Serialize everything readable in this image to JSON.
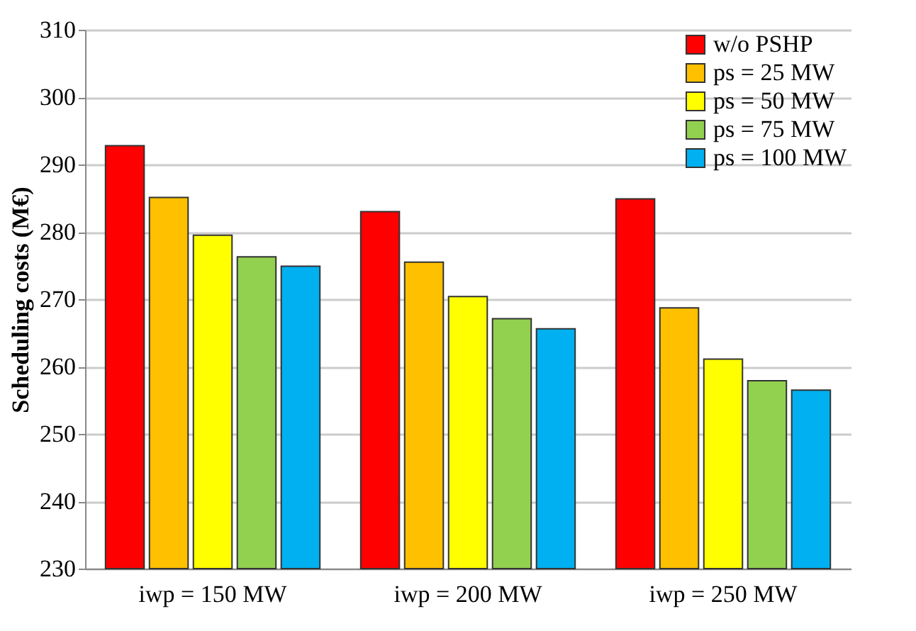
{
  "chart_data": {
    "type": "bar",
    "ylabel": "Scheduling costs (M€)",
    "categories": [
      "iwp = 150 MW",
      "iwp = 200 MW",
      "iwp = 250 MW"
    ],
    "series": [
      {
        "name": "w/o PSHP",
        "color": "#ff0000",
        "values": [
          292.8,
          283.0,
          284.9
        ]
      },
      {
        "name": "ps = 25 MW",
        "color": "#ffc000",
        "values": [
          285.1,
          275.5,
          268.7
        ]
      },
      {
        "name": "ps = 50 MW",
        "color": "#ffff00",
        "values": [
          279.5,
          270.4,
          261.1
        ]
      },
      {
        "name": "ps = 75 MW",
        "color": "#92d050",
        "values": [
          276.3,
          267.1,
          257.9
        ]
      },
      {
        "name": "ps = 100 MW",
        "color": "#00b0f0",
        "values": [
          274.9,
          265.6,
          256.5
        ]
      }
    ],
    "ylim": [
      230,
      310
    ],
    "yticks": [
      230,
      240,
      250,
      260,
      270,
      280,
      290,
      300,
      310
    ],
    "grid": "y",
    "legend": "top right"
  }
}
